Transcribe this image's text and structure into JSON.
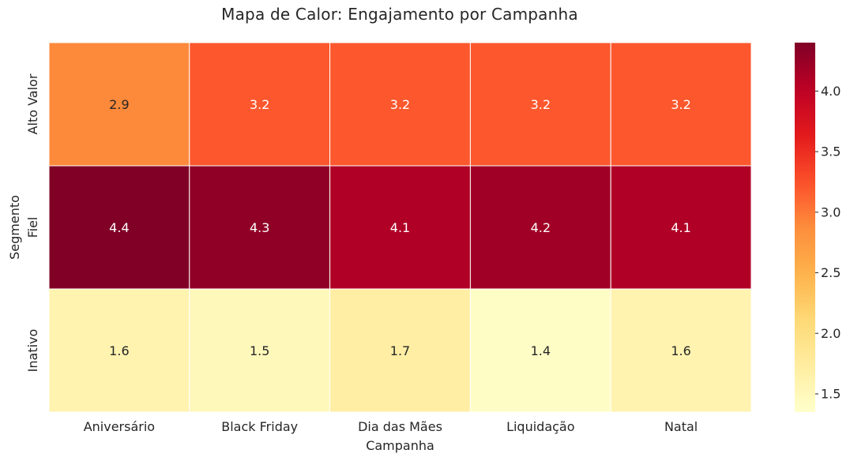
{
  "chart_data": {
    "type": "heatmap",
    "title": "Mapa de Calor: Engajamento por Campanha",
    "xlabel": "Campanha",
    "ylabel": "Segmento",
    "x_categories": [
      "Aniversário",
      "Black Friday",
      "Dia das Mães",
      "Liquidação",
      "Natal"
    ],
    "y_categories": [
      "Alto Valor",
      "Fiel",
      "Inativo"
    ],
    "values": [
      [
        2.9,
        3.2,
        3.2,
        3.2,
        3.2
      ],
      [
        4.4,
        4.3,
        4.1,
        4.2,
        4.1
      ],
      [
        1.6,
        1.5,
        1.7,
        1.4,
        1.6
      ]
    ],
    "colormap": "YlOrRd",
    "colorbar": {
      "min": 1.35,
      "max": 4.4,
      "ticks": [
        1.5,
        2.0,
        2.5,
        3.0,
        3.5,
        4.0
      ],
      "tick_labels": [
        "1.5",
        "2.0",
        "2.5",
        "3.0",
        "3.5",
        "4.0"
      ]
    },
    "annotations": true
  }
}
